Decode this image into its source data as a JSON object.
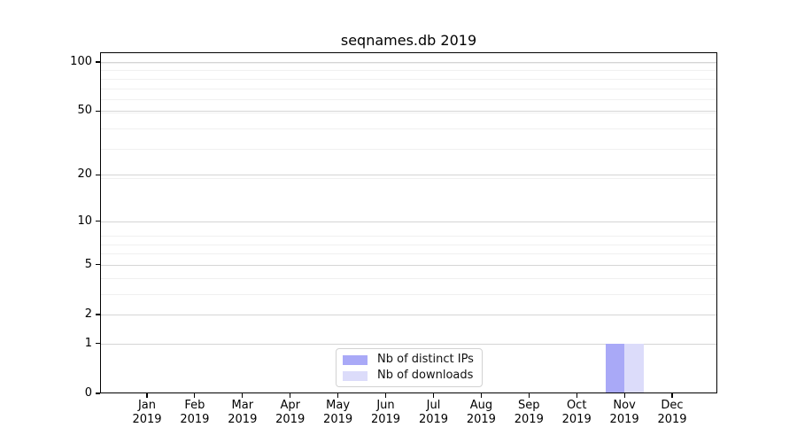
{
  "chart_data": {
    "type": "bar",
    "title": "seqnames.db 2019",
    "x_tick_year": "2019",
    "x_tick_months": [
      "Jan",
      "Feb",
      "Mar",
      "Apr",
      "May",
      "Jun",
      "Jul",
      "Aug",
      "Sep",
      "Oct",
      "Nov",
      "Dec"
    ],
    "categories": [
      "Jan 2019",
      "Feb 2019",
      "Mar 2019",
      "Apr 2019",
      "May 2019",
      "Jun 2019",
      "Jul 2019",
      "Aug 2019",
      "Sep 2019",
      "Oct 2019",
      "Nov 2019",
      "Dec 2019"
    ],
    "series": [
      {
        "name": "Nb of distinct IPs",
        "color": "#a9a9f7",
        "values": [
          0,
          0,
          0,
          0,
          0,
          0,
          0,
          0,
          0,
          0,
          1,
          0
        ]
      },
      {
        "name": "Nb of downloads",
        "color": "#dcdcfa",
        "values": [
          0,
          0,
          0,
          0,
          0,
          0,
          0,
          0,
          0,
          0,
          1,
          0
        ]
      }
    ],
    "y_ticks": [
      0,
      1,
      2,
      5,
      10,
      20,
      50,
      100
    ],
    "y_scale": "log10(1+count)",
    "ylim": [
      0,
      115
    ],
    "grid": "horizontal-only",
    "legend_position": "bottom-center"
  }
}
